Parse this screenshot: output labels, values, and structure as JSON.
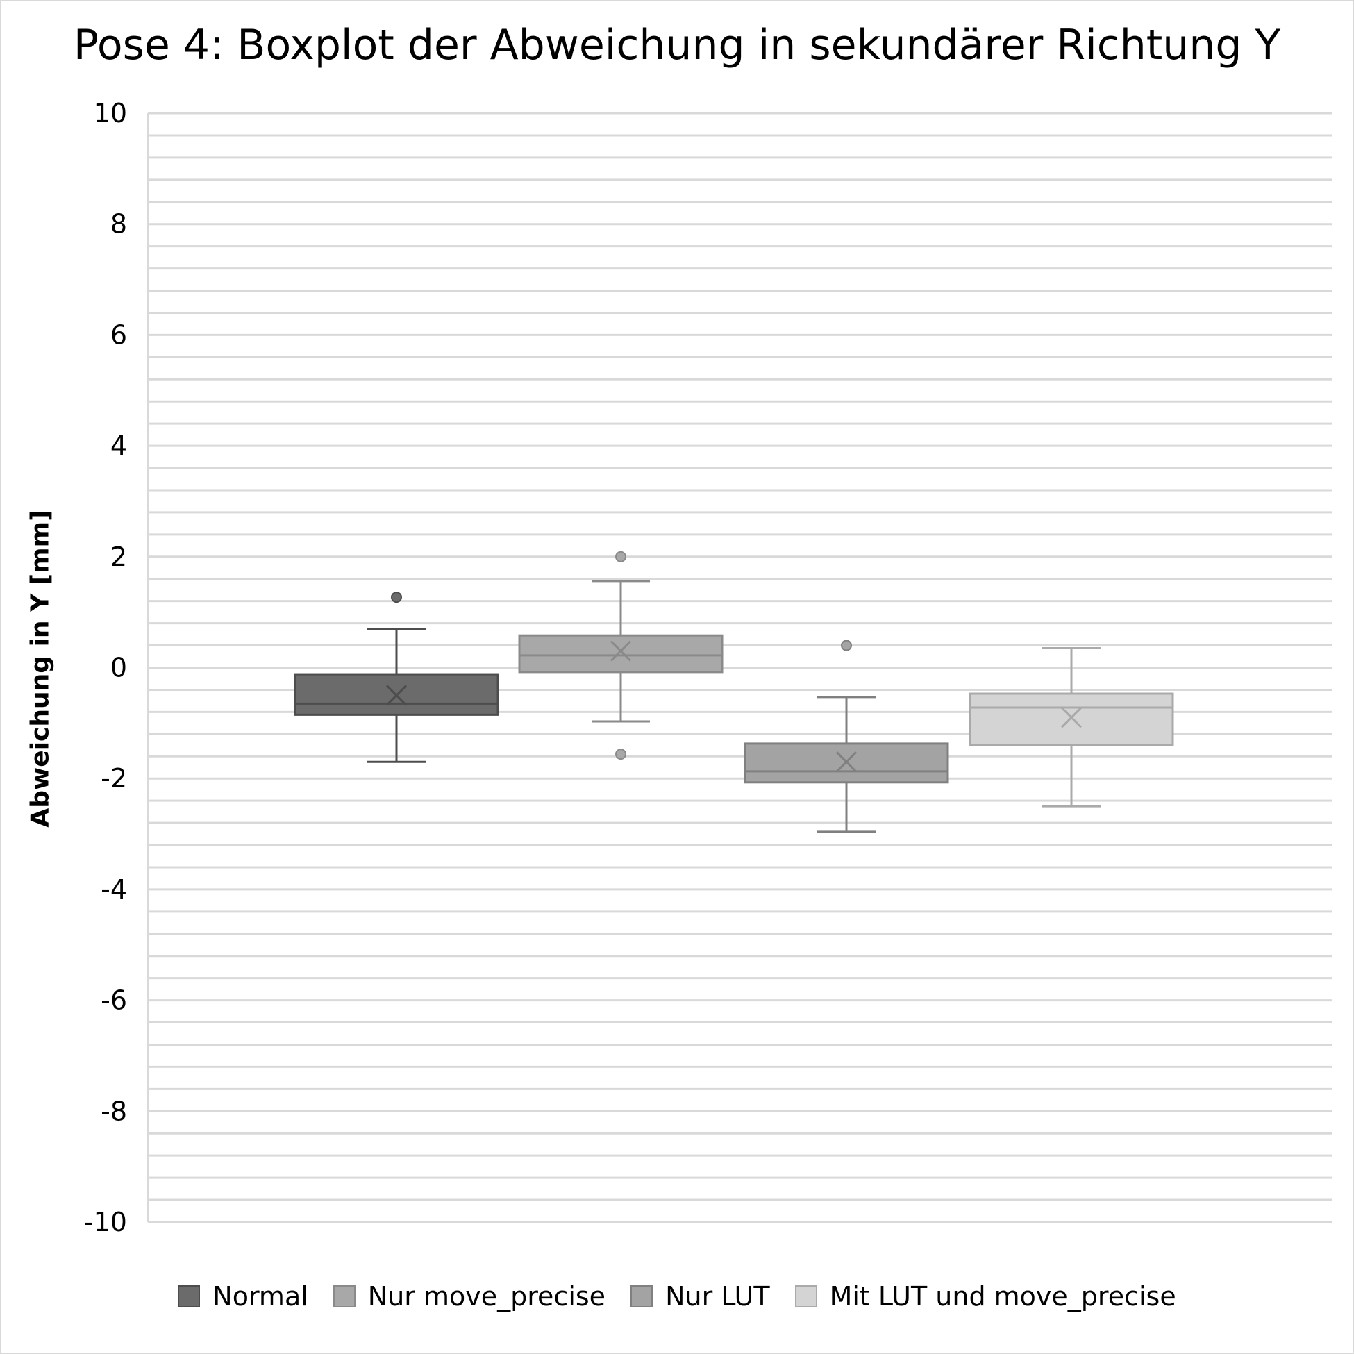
{
  "chart_data": {
    "type": "boxplot",
    "title": "Pose 4: Boxplot der Abweichung in sekundärer Richtung Y",
    "ylabel": "Abweichung in Y [mm]",
    "ylim": [
      -10,
      10
    ],
    "yticks": [
      "10",
      "8",
      "6",
      "4",
      "2",
      "0",
      "-2",
      "-4",
      "-6",
      "-8",
      "-10"
    ],
    "ytick_values": [
      10,
      8,
      6,
      4,
      2,
      0,
      -2,
      -4,
      -6,
      -8,
      -10
    ],
    "minor_grid_step": 0.4,
    "grid": true,
    "legend_position": "bottom",
    "series": [
      {
        "name": "Normal",
        "whisker_low": -1.7,
        "q1": -0.85,
        "median": -0.65,
        "q3": -0.12,
        "whisker_high": 0.7,
        "mean": -0.5,
        "outliers": [
          1.27
        ],
        "fill": "#6b6b6b",
        "stroke": "#4d4d4d"
      },
      {
        "name": "Nur move_precise",
        "whisker_low": -0.97,
        "q1": -0.08,
        "median": 0.22,
        "q3": 0.58,
        "whisker_high": 1.56,
        "mean": 0.3,
        "outliers": [
          2.0,
          -1.56
        ],
        "fill": "#a8a8a8",
        "stroke": "#8a8a8a"
      },
      {
        "name": "Nur LUT",
        "whisker_low": -2.96,
        "q1": -2.07,
        "median": -1.87,
        "q3": -1.37,
        "whisker_high": -0.53,
        "mean": -1.7,
        "outliers": [
          0.4
        ],
        "fill": "#a3a3a3",
        "stroke": "#808080"
      },
      {
        "name": "Mit LUT und move_precise",
        "whisker_low": -2.5,
        "q1": -1.4,
        "median": -0.72,
        "q3": -0.47,
        "whisker_high": 0.35,
        "mean": -0.9,
        "outliers": [],
        "fill": "#d4d4d4",
        "stroke": "#aaaaaa"
      }
    ]
  }
}
